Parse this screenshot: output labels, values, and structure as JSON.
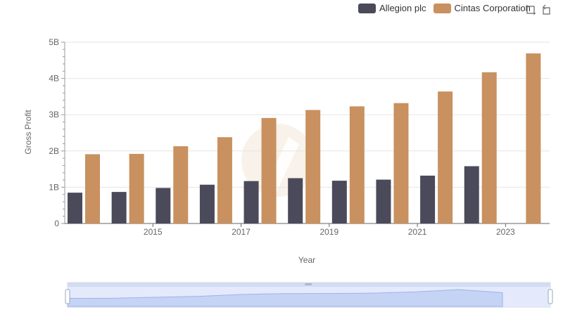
{
  "legend": {
    "items": [
      {
        "label": "Allegion plc",
        "color": "#4a4a5a"
      },
      {
        "label": "Cintas Corporation",
        "color": "#c8915f"
      }
    ]
  },
  "toolbar": {
    "zoom_icon": "zoom-area-icon",
    "restore_icon": "restore-icon"
  },
  "chart_data": {
    "type": "bar",
    "title": "",
    "xlabel": "Year",
    "ylabel": "Gross Profit",
    "categories": [
      "2014",
      "2015",
      "2016",
      "2017",
      "2018",
      "2019",
      "2020",
      "2021",
      "2022",
      "2023",
      "2024"
    ],
    "x_tick_labels": [
      "2015",
      "2017",
      "2019",
      "2021",
      "2023"
    ],
    "y_tick_labels": [
      "0",
      "1B",
      "2B",
      "3B",
      "4B",
      "5B"
    ],
    "ylim": [
      0,
      5000000000
    ],
    "grid": true,
    "legend_position": "top-right",
    "series": [
      {
        "name": "Allegion plc",
        "color": "#4a4a5a",
        "values": [
          850000000,
          870000000,
          980000000,
          1070000000,
          1170000000,
          1250000000,
          1180000000,
          1210000000,
          1320000000,
          1580000000,
          null
        ]
      },
      {
        "name": "Cintas Corporation",
        "color": "#c8915f",
        "values": [
          1910000000,
          1920000000,
          2130000000,
          2380000000,
          2910000000,
          3130000000,
          3230000000,
          3320000000,
          3640000000,
          4170000000,
          4690000000
        ]
      }
    ]
  }
}
